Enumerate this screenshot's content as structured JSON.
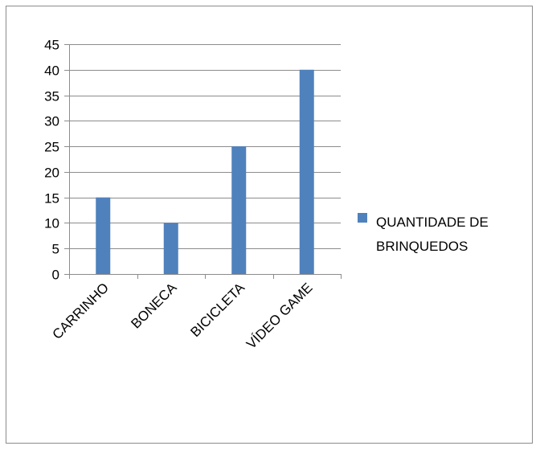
{
  "chart_data": {
    "type": "bar",
    "categories": [
      "CARRINHO",
      "BONECA",
      "BICICLETA",
      "VÍDEO GAME"
    ],
    "series": [
      {
        "name": "QUANTIDADE DE BRINQUEDOS",
        "values": [
          15,
          10,
          25,
          40
        ],
        "color": "#4f81bd"
      }
    ],
    "ylim": [
      0,
      45
    ],
    "yticks": [
      0,
      5,
      10,
      15,
      20,
      25,
      30,
      35,
      40,
      45
    ],
    "grid": true,
    "legend": "right"
  },
  "legend": {
    "label": "QUANTIDADE DE BRINQUEDOS"
  }
}
